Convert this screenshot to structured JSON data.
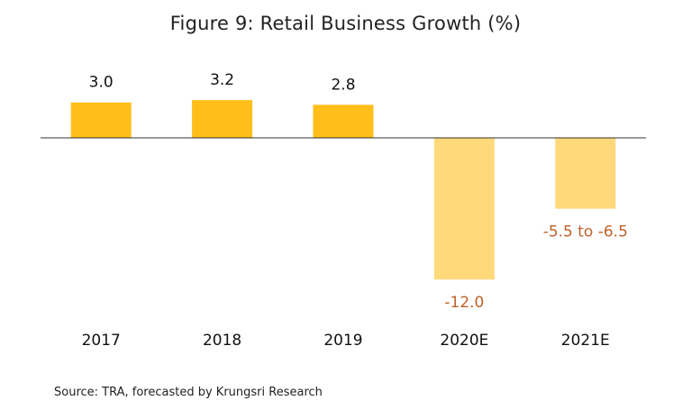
{
  "chart_data": {
    "type": "bar",
    "title": "Figure 9: Retail Business Growth (%)",
    "xlabel": "",
    "ylabel": "",
    "categories": [
      "2017",
      "2018",
      "2019",
      "2020E",
      "2021E"
    ],
    "values": [
      3.0,
      3.2,
      2.8,
      -12.0,
      -6.0
    ],
    "data_labels": [
      "3.0",
      "3.2",
      "2.8",
      "-12.0",
      "-5.5 to -6.5"
    ],
    "bar_colors": [
      "#FFBE1A",
      "#FFBE1A",
      "#FFBE1A",
      "#FFD97A",
      "#FFD97A"
    ],
    "label_colors": [
      "#111111",
      "#111111",
      "#111111",
      "#C0622A",
      "#C0622A"
    ],
    "ylim": [
      -13,
      4
    ],
    "grid": false,
    "legend": "none"
  },
  "source": "Source: TRA, forecasted by Krungsri Research"
}
